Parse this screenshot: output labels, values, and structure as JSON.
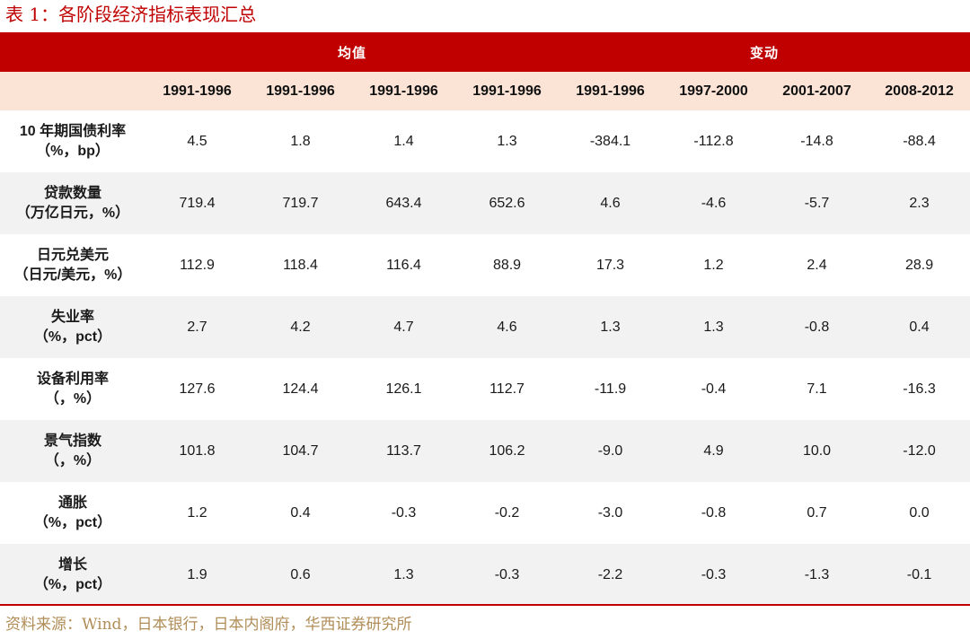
{
  "title": "表 1：各阶段经济指标表现汇总",
  "table": {
    "groups": {
      "left": "均值",
      "right": "变动"
    },
    "years": [
      "1991-1996",
      "1991-1996",
      "1991-1996",
      "1991-1996",
      "1991-1996",
      "1997-2000",
      "2001-2007",
      "2008-2012"
    ],
    "rows": [
      {
        "name": "10 年期国债利率",
        "unit": "（%，bp）",
        "values": [
          "4.5",
          "1.8",
          "1.4",
          "1.3",
          "-384.1",
          "-112.8",
          "-14.8",
          "-88.4"
        ]
      },
      {
        "name": "贷款数量",
        "unit": "（万亿日元，%）",
        "values": [
          "719.4",
          "719.7",
          "643.4",
          "652.6",
          "4.6",
          "-4.6",
          "-5.7",
          "2.3"
        ]
      },
      {
        "name": "日元兑美元",
        "unit": "（日元/美元，%）",
        "values": [
          "112.9",
          "118.4",
          "116.4",
          "88.9",
          "17.3",
          "1.2",
          "2.4",
          "28.9"
        ]
      },
      {
        "name": "失业率",
        "unit": "（%，pct）",
        "values": [
          "2.7",
          "4.2",
          "4.7",
          "4.6",
          "1.3",
          "1.3",
          "-0.8",
          "0.4"
        ]
      },
      {
        "name": "设备利用率",
        "unit": "（，%）",
        "values": [
          "127.6",
          "124.4",
          "126.1",
          "112.7",
          "-11.9",
          "-0.4",
          "7.1",
          "-16.3"
        ]
      },
      {
        "name": "景气指数",
        "unit": "（，%）",
        "values": [
          "101.8",
          "104.7",
          "113.7",
          "106.2",
          "-9.0",
          "4.9",
          "10.0",
          "-12.0"
        ]
      },
      {
        "name": "通胀",
        "unit": "（%，pct）",
        "values": [
          "1.2",
          "0.4",
          "-0.3",
          "-0.2",
          "-3.0",
          "-0.8",
          "0.7",
          "0.0"
        ]
      },
      {
        "name": "增长",
        "unit": "（%，pct）",
        "values": [
          "1.9",
          "0.6",
          "1.3",
          "-0.3",
          "-2.2",
          "-0.3",
          "-1.3",
          "-0.1"
        ]
      }
    ]
  },
  "source": "资料来源：Wind，日本银行，日本内阁府，华西证券研究所",
  "colors": {
    "accent": "#c00000",
    "header_band": "#fbe3d6",
    "alt_row": "#f2f2f2",
    "source_text": "#b08d57"
  }
}
